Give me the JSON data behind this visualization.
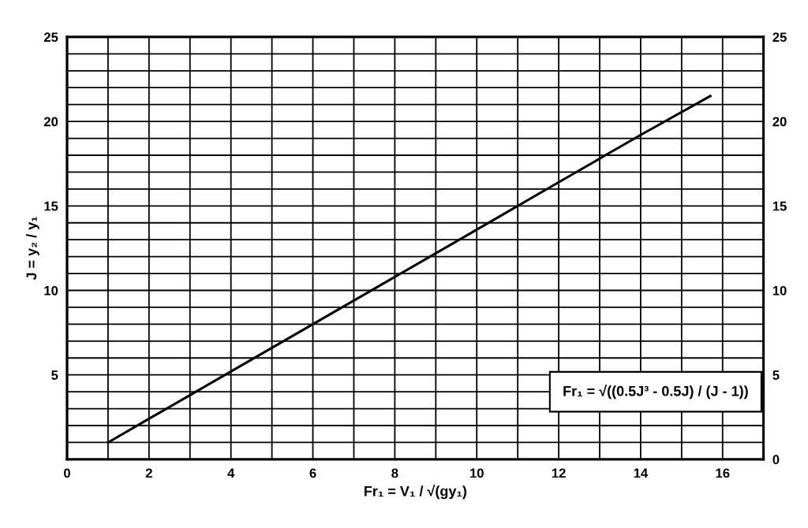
{
  "chart_data": {
    "type": "line",
    "xlabel": "Fr₁ = V₁ / √(gy₁)",
    "ylabel": "J = y₂ / y₁",
    "annotations": [
      "Fr₁ = √((0.5J³ - 0.5J) / (J - 1))"
    ],
    "x": [
      1,
      2,
      4,
      6,
      8,
      10,
      12,
      14,
      15.7
    ],
    "series": [
      {
        "color": "#000000",
        "values": [
          1.0,
          2.4,
          5.2,
          8.0,
          10.8,
          13.6,
          16.4,
          19.2,
          21.5
        ]
      }
    ],
    "xlim": [
      0,
      17
    ],
    "xticks": [
      0,
      {
        "value": 1,
        "label": null
      },
      2,
      {
        "value": 3,
        "label": null
      },
      4,
      {
        "value": 5,
        "label": null
      },
      6,
      {
        "value": 7,
        "label": null
      },
      8,
      {
        "value": 9,
        "label": null
      },
      10,
      {
        "value": 11,
        "label": null
      },
      12,
      {
        "value": 13,
        "label": null
      },
      14,
      {
        "value": 15,
        "label": null
      },
      16,
      {
        "value": 17,
        "label": null
      }
    ],
    "ylim": [
      0,
      25
    ],
    "yticks": [
      {
        "value": 0,
        "label": null
      },
      {
        "value": 1,
        "label": null
      },
      {
        "value": 2,
        "label": null
      },
      {
        "value": 3,
        "label": null
      },
      {
        "value": 4,
        "label": null
      },
      5,
      {
        "value": 6,
        "label": null
      },
      {
        "value": 7,
        "label": null
      },
      {
        "value": 8,
        "label": null
      },
      {
        "value": 9,
        "label": null
      },
      10,
      {
        "value": 11,
        "label": null
      },
      {
        "value": 12,
        "label": null
      },
      {
        "value": 13,
        "label": null
      },
      {
        "value": 14,
        "label": null
      },
      15,
      {
        "value": 16,
        "label": null
      },
      {
        "value": 17,
        "label": null
      },
      {
        "value": 18,
        "label": null
      },
      {
        "value": 19,
        "label": null
      },
      20,
      {
        "value": 21,
        "label": null
      },
      {
        "value": 22,
        "label": null
      },
      {
        "value": 23,
        "label": null
      },
      {
        "value": 24,
        "label": null
      },
      25
    ],
    "y2lim": [
      0,
      25
    ],
    "y2ticks": [
      0,
      5,
      10,
      15,
      20,
      25
    ],
    "grid": true,
    "marker": "none",
    "line_style": "solid"
  }
}
